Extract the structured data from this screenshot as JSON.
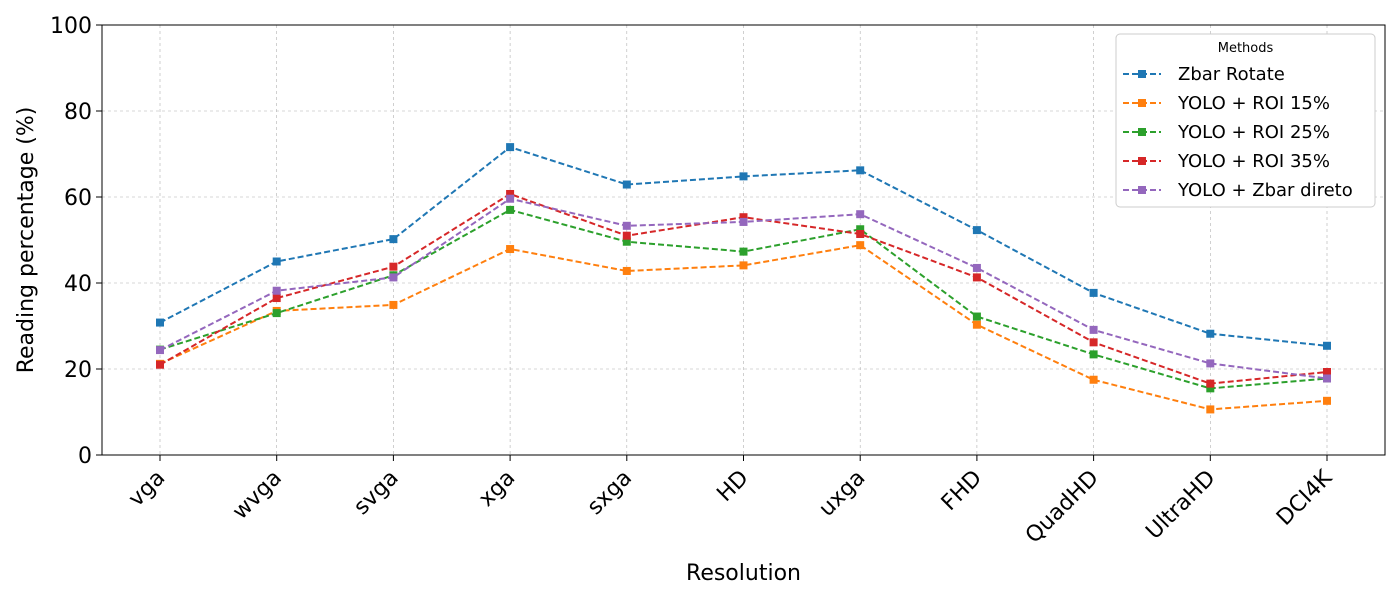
{
  "chart_data": {
    "type": "line",
    "xlabel": "Resolution",
    "ylabel": "Reading percentage (%)",
    "ylim": [
      0,
      100
    ],
    "yticks": [
      0,
      20,
      40,
      60,
      80,
      100
    ],
    "categories": [
      "vga",
      "wvga",
      "svga",
      "xga",
      "sxga",
      "HD",
      "uxga",
      "FHD",
      "QuadHD",
      "UltraHD",
      "DCI4K"
    ],
    "grid": true,
    "legend": {
      "title": "Methods",
      "placement": "top-right"
    },
    "series": [
      {
        "name": "Zbar Rotate",
        "color": "#1f77b4",
        "values": [
          30.8,
          45.0,
          50.2,
          71.6,
          62.9,
          64.8,
          66.2,
          52.3,
          37.7,
          28.2,
          25.4
        ]
      },
      {
        "name": "YOLO + ROI 15%",
        "color": "#ff7f0e",
        "values": [
          21.2,
          33.5,
          34.9,
          47.9,
          42.8,
          44.1,
          48.8,
          30.3,
          17.5,
          10.6,
          12.6
        ]
      },
      {
        "name": "YOLO + ROI 25%",
        "color": "#2ca02c",
        "values": [
          24.5,
          33.0,
          41.8,
          57.0,
          49.6,
          47.3,
          52.5,
          32.2,
          23.4,
          15.5,
          17.8
        ]
      },
      {
        "name": "YOLO + ROI 35%",
        "color": "#d62728",
        "values": [
          21.0,
          36.5,
          43.8,
          60.7,
          51.0,
          55.3,
          51.4,
          41.3,
          26.2,
          16.6,
          19.3
        ]
      },
      {
        "name": "YOLO + Zbar direto",
        "color": "#9467bd",
        "values": [
          24.4,
          38.2,
          41.3,
          59.6,
          53.3,
          54.2,
          56.0,
          43.5,
          29.1,
          21.3,
          17.8
        ]
      }
    ]
  }
}
